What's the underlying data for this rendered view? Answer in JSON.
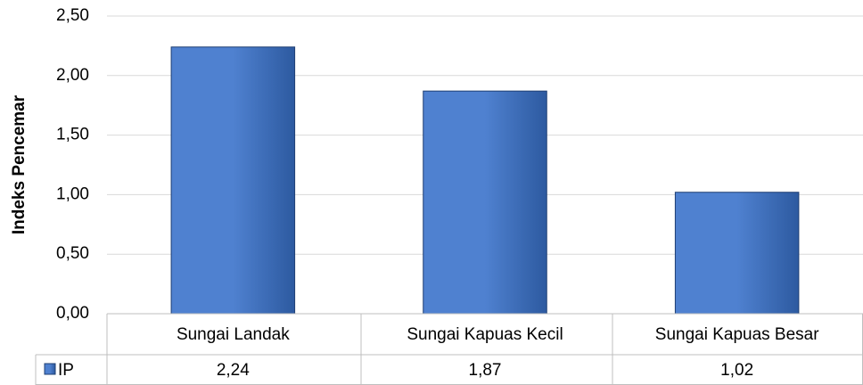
{
  "chart_data": {
    "type": "bar",
    "ylabel": "Indeks Pencemar",
    "categories": [
      "Sungai Landak",
      "Sungai Kapuas Kecil",
      "Sungai Kapuas Besar"
    ],
    "series": [
      {
        "name": "IP",
        "color": "#4f81d0",
        "values": [
          2.24,
          1.87,
          1.02
        ],
        "value_labels": [
          "2,24",
          "1,87",
          "1,02"
        ]
      }
    ],
    "ylim": [
      0,
      2.5
    ],
    "yticks": [
      {
        "value": 0,
        "label": "0,00"
      },
      {
        "value": 0.5,
        "label": "0,50"
      },
      {
        "value": 1,
        "label": "1,00"
      },
      {
        "value": 1.5,
        "label": "1,50"
      },
      {
        "value": 2,
        "label": "2,00"
      },
      {
        "value": 2.5,
        "label": "2,50"
      }
    ],
    "grid": true
  }
}
